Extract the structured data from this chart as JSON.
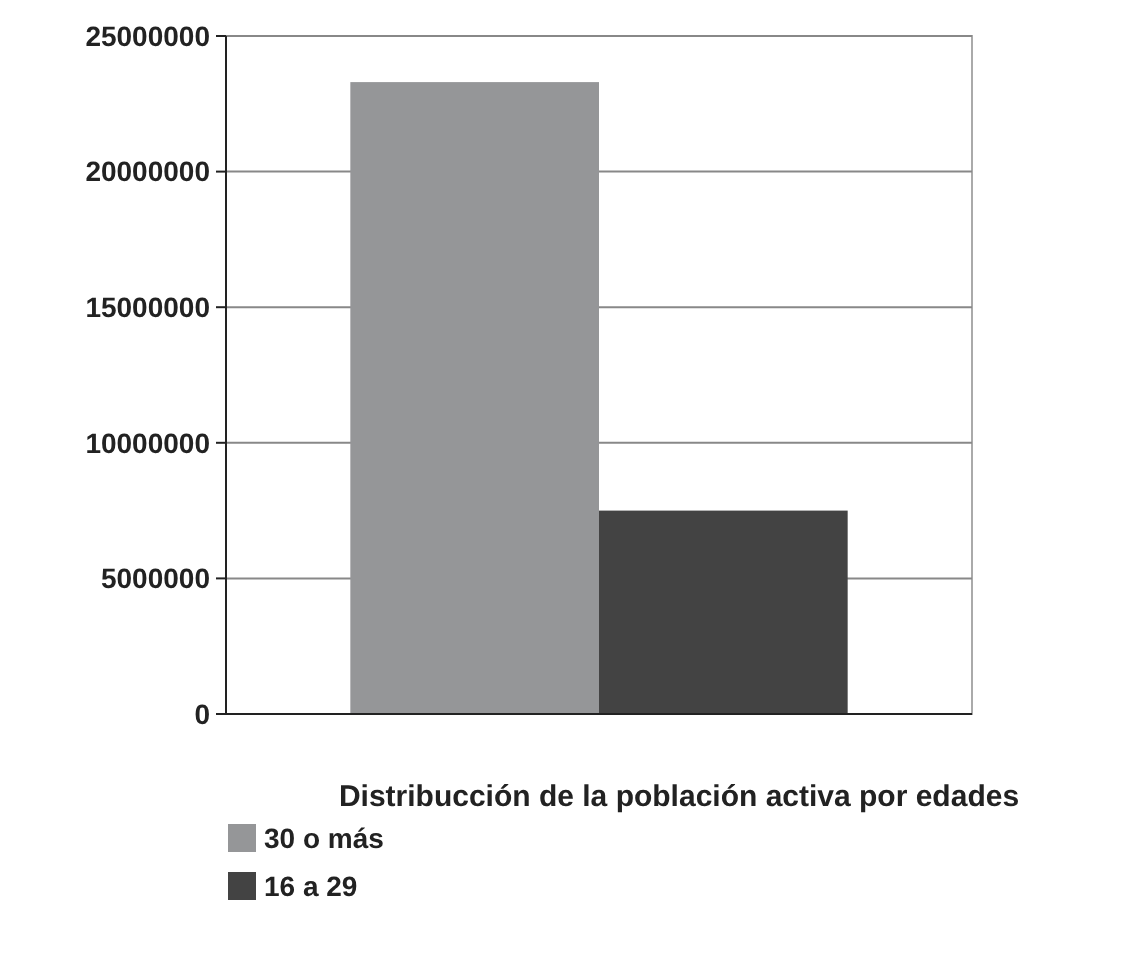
{
  "chart_data": {
    "type": "bar",
    "xlabel": "Distribucción de la población activa por edades",
    "categories": [
      null
    ],
    "series": [
      {
        "name": "30 o más",
        "color": "#959698",
        "values": [
          23300000
        ]
      },
      {
        "name": "16 a 29",
        "color": "#434343",
        "values": [
          7500000
        ]
      }
    ],
    "ylim": [
      0,
      25000000
    ],
    "yticks": [
      0,
      5000000,
      10000000,
      15000000,
      20000000,
      25000000
    ],
    "grid": "y",
    "legend": "bottom left"
  }
}
